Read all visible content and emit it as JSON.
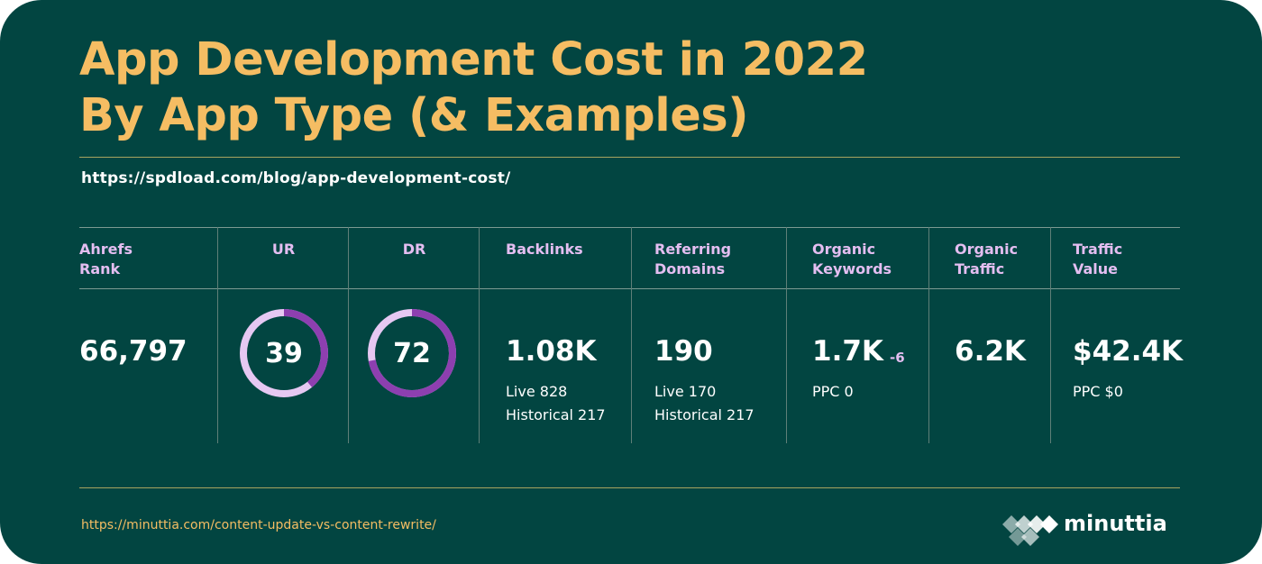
{
  "title": {
    "line1": "App Development Cost in 2022",
    "line2": "By App Type (& Examples)"
  },
  "url": "https://spdload.com/blog/app-development-cost/",
  "metrics": {
    "ahrefs_rank": {
      "label1": "Ahrefs",
      "label2": "Rank",
      "value": "66,797"
    },
    "ur": {
      "label": "UR",
      "value": "39",
      "score": 39
    },
    "dr": {
      "label": "DR",
      "value": "72",
      "score": 72
    },
    "backlinks": {
      "label": "Backlinks",
      "value": "1.08K",
      "live": "Live 828",
      "historical": "Historical 217"
    },
    "referring_domains": {
      "label1": "Referring",
      "label2": "Domains",
      "value": "190",
      "live": "Live 170",
      "historical": "Historical 217"
    },
    "organic_keywords": {
      "label1": "Organic",
      "label2": "Keywords",
      "value": "1.7K",
      "delta": "-6",
      "ppc": "PPC 0"
    },
    "organic_traffic": {
      "label1": "Organic",
      "label2": "Traffic",
      "value": "6.2K"
    },
    "traffic_value": {
      "label1": "Traffic",
      "label2": "Value",
      "value": "$42.4K",
      "ppc": "PPC $0"
    }
  },
  "footer": {
    "url": "https://minuttia.com/content-update-vs-content-rewrite/",
    "brand": "minuttia"
  },
  "colors": {
    "background": "#024541",
    "title": "#f5bd63",
    "label": "#e4bef1",
    "donut_filled": "#8d3fb0",
    "donut_track": "#e6c8f2"
  }
}
